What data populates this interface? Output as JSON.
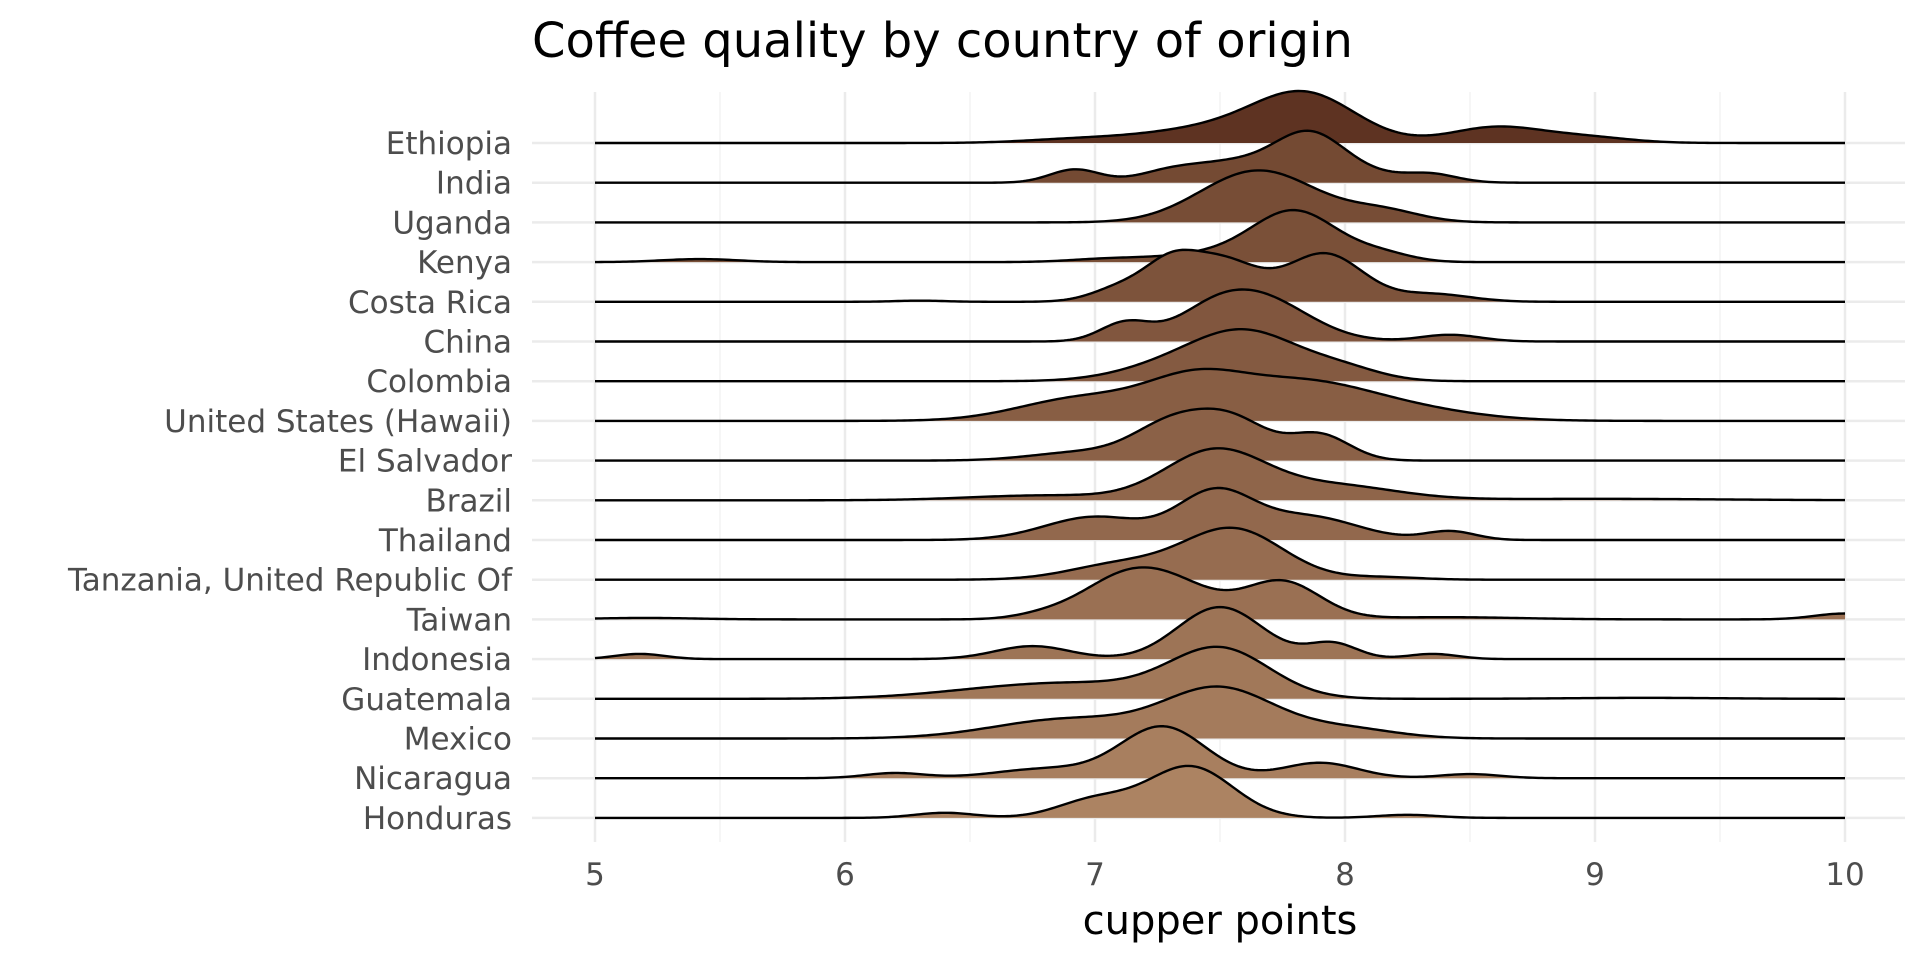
{
  "chart_data": {
    "type": "area",
    "subtype": "ridgeline",
    "title": "Coffee quality by country of origin",
    "xlabel": "cupper points",
    "ylabel": "",
    "xlim": [
      5,
      10
    ],
    "x_ticks": [
      "5",
      "6",
      "7",
      "8",
      "9",
      "10"
    ],
    "grid": true,
    "legend": "none",
    "fill_gradient": {
      "top": "#5a3020",
      "bottom": "#a9825a"
    },
    "series": [
      {
        "name": "Ethiopia",
        "color": "#5e3322",
        "bumps": [
          [
            6.9,
            0.2,
            0.07
          ],
          [
            7.3,
            0.25,
            0.14
          ],
          [
            7.85,
            0.2,
            1.0
          ],
          [
            7.6,
            0.25,
            0.3
          ],
          [
            8.6,
            0.18,
            0.36
          ],
          [
            8.95,
            0.18,
            0.14
          ]
        ]
      },
      {
        "name": "India",
        "color": "#744a33",
        "bumps": [
          [
            6.92,
            0.1,
            0.3
          ],
          [
            7.3,
            0.13,
            0.25
          ],
          [
            7.55,
            0.15,
            0.4
          ],
          [
            7.85,
            0.14,
            1.0
          ],
          [
            8.35,
            0.1,
            0.15
          ],
          [
            8.05,
            0.2,
            0.2
          ]
        ]
      },
      {
        "name": "Uganda",
        "color": "#774d36",
        "bumps": [
          [
            7.55,
            0.2,
            0.7
          ],
          [
            7.75,
            0.2,
            0.75
          ],
          [
            8.15,
            0.15,
            0.28
          ]
        ]
      },
      {
        "name": "Kenya",
        "color": "#7a5038",
        "bumps": [
          [
            5.42,
            0.15,
            0.06
          ],
          [
            7.05,
            0.15,
            0.06
          ],
          [
            7.8,
            0.17,
            1.0
          ],
          [
            7.45,
            0.2,
            0.15
          ],
          [
            8.15,
            0.12,
            0.15
          ]
        ]
      },
      {
        "name": "Costa Rica",
        "color": "#7d533b",
        "bumps": [
          [
            6.3,
            0.1,
            0.015
          ],
          [
            7.12,
            0.12,
            0.2
          ],
          [
            7.3,
            0.1,
            0.35
          ],
          [
            7.5,
            0.15,
            0.55
          ],
          [
            7.92,
            0.15,
            0.62
          ],
          [
            8.35,
            0.15,
            0.1
          ]
        ]
      },
      {
        "name": "China",
        "color": "#81563e",
        "bumps": [
          [
            7.12,
            0.1,
            0.35
          ],
          [
            7.65,
            0.2,
            0.85
          ],
          [
            7.45,
            0.15,
            0.3
          ],
          [
            8.42,
            0.12,
            0.13
          ]
        ]
      },
      {
        "name": "Colombia",
        "color": "#845a41",
        "bumps": [
          [
            7.6,
            0.22,
            1.0
          ],
          [
            7.25,
            0.2,
            0.2
          ],
          [
            8.0,
            0.15,
            0.2
          ]
        ]
      },
      {
        "name": "United States (Hawaii)",
        "color": "#885e44",
        "bumps": [
          [
            6.95,
            0.25,
            0.3
          ],
          [
            7.4,
            0.2,
            0.5
          ],
          [
            7.8,
            0.25,
            0.4
          ],
          [
            8.15,
            0.3,
            0.2
          ]
        ]
      },
      {
        "name": "El Salvador",
        "color": "#8b6147",
        "bumps": [
          [
            7.3,
            0.15,
            0.6
          ],
          [
            7.55,
            0.15,
            0.7
          ],
          [
            7.9,
            0.12,
            0.45
          ],
          [
            6.95,
            0.2,
            0.15
          ]
        ]
      },
      {
        "name": "Brazil",
        "color": "#8f654a",
        "bumps": [
          [
            7.48,
            0.2,
            1.0
          ],
          [
            7.95,
            0.25,
            0.3
          ],
          [
            6.8,
            0.3,
            0.1
          ],
          [
            9.0,
            0.5,
            0.03
          ]
        ]
      },
      {
        "name": "Thailand",
        "color": "#92684d",
        "bumps": [
          [
            7.0,
            0.2,
            0.4
          ],
          [
            7.48,
            0.15,
            0.8
          ],
          [
            7.85,
            0.2,
            0.4
          ],
          [
            8.42,
            0.1,
            0.15
          ]
        ]
      },
      {
        "name": "Tanzania, United Republic Of",
        "color": "#966c50",
        "bumps": [
          [
            7.55,
            0.2,
            1.0
          ],
          [
            7.1,
            0.2,
            0.3
          ],
          [
            8.15,
            0.15,
            0.05
          ]
        ]
      },
      {
        "name": "Taiwan",
        "color": "#9a7053",
        "bumps": [
          [
            5.2,
            0.2,
            0.02
          ],
          [
            6.8,
            0.12,
            0.06
          ],
          [
            7.25,
            0.2,
            0.6
          ],
          [
            7.75,
            0.15,
            0.5
          ],
          [
            7.05,
            0.15,
            0.2
          ],
          [
            10.0,
            0.12,
            0.08
          ],
          [
            8.4,
            0.3,
            0.03
          ]
        ]
      },
      {
        "name": "Indonesia",
        "color": "#9d7456",
        "bumps": [
          [
            5.18,
            0.1,
            0.1
          ],
          [
            6.75,
            0.15,
            0.25
          ],
          [
            7.5,
            0.17,
            1.0
          ],
          [
            7.95,
            0.1,
            0.3
          ],
          [
            8.35,
            0.1,
            0.1
          ]
        ]
      },
      {
        "name": "Guatemala",
        "color": "#a17859",
        "bumps": [
          [
            7.5,
            0.2,
            1.0
          ],
          [
            7.0,
            0.3,
            0.25
          ],
          [
            6.6,
            0.3,
            0.15
          ],
          [
            9.2,
            0.3,
            0.02
          ]
        ]
      },
      {
        "name": "Mexico",
        "color": "#a47b5c",
        "bumps": [
          [
            7.5,
            0.22,
            1.0
          ],
          [
            6.9,
            0.3,
            0.4
          ],
          [
            8.0,
            0.2,
            0.2
          ]
        ]
      },
      {
        "name": "Nicaragua",
        "color": "#a87f5f",
        "bumps": [
          [
            7.27,
            0.17,
            1.0
          ],
          [
            6.2,
            0.12,
            0.1
          ],
          [
            6.8,
            0.2,
            0.18
          ],
          [
            7.9,
            0.15,
            0.3
          ],
          [
            8.5,
            0.12,
            0.08
          ]
        ]
      },
      {
        "name": "Honduras",
        "color": "#ac8362",
        "bumps": [
          [
            7.38,
            0.17,
            1.0
          ],
          [
            6.4,
            0.12,
            0.1
          ],
          [
            7.0,
            0.15,
            0.35
          ],
          [
            8.25,
            0.12,
            0.06
          ]
        ]
      }
    ]
  }
}
